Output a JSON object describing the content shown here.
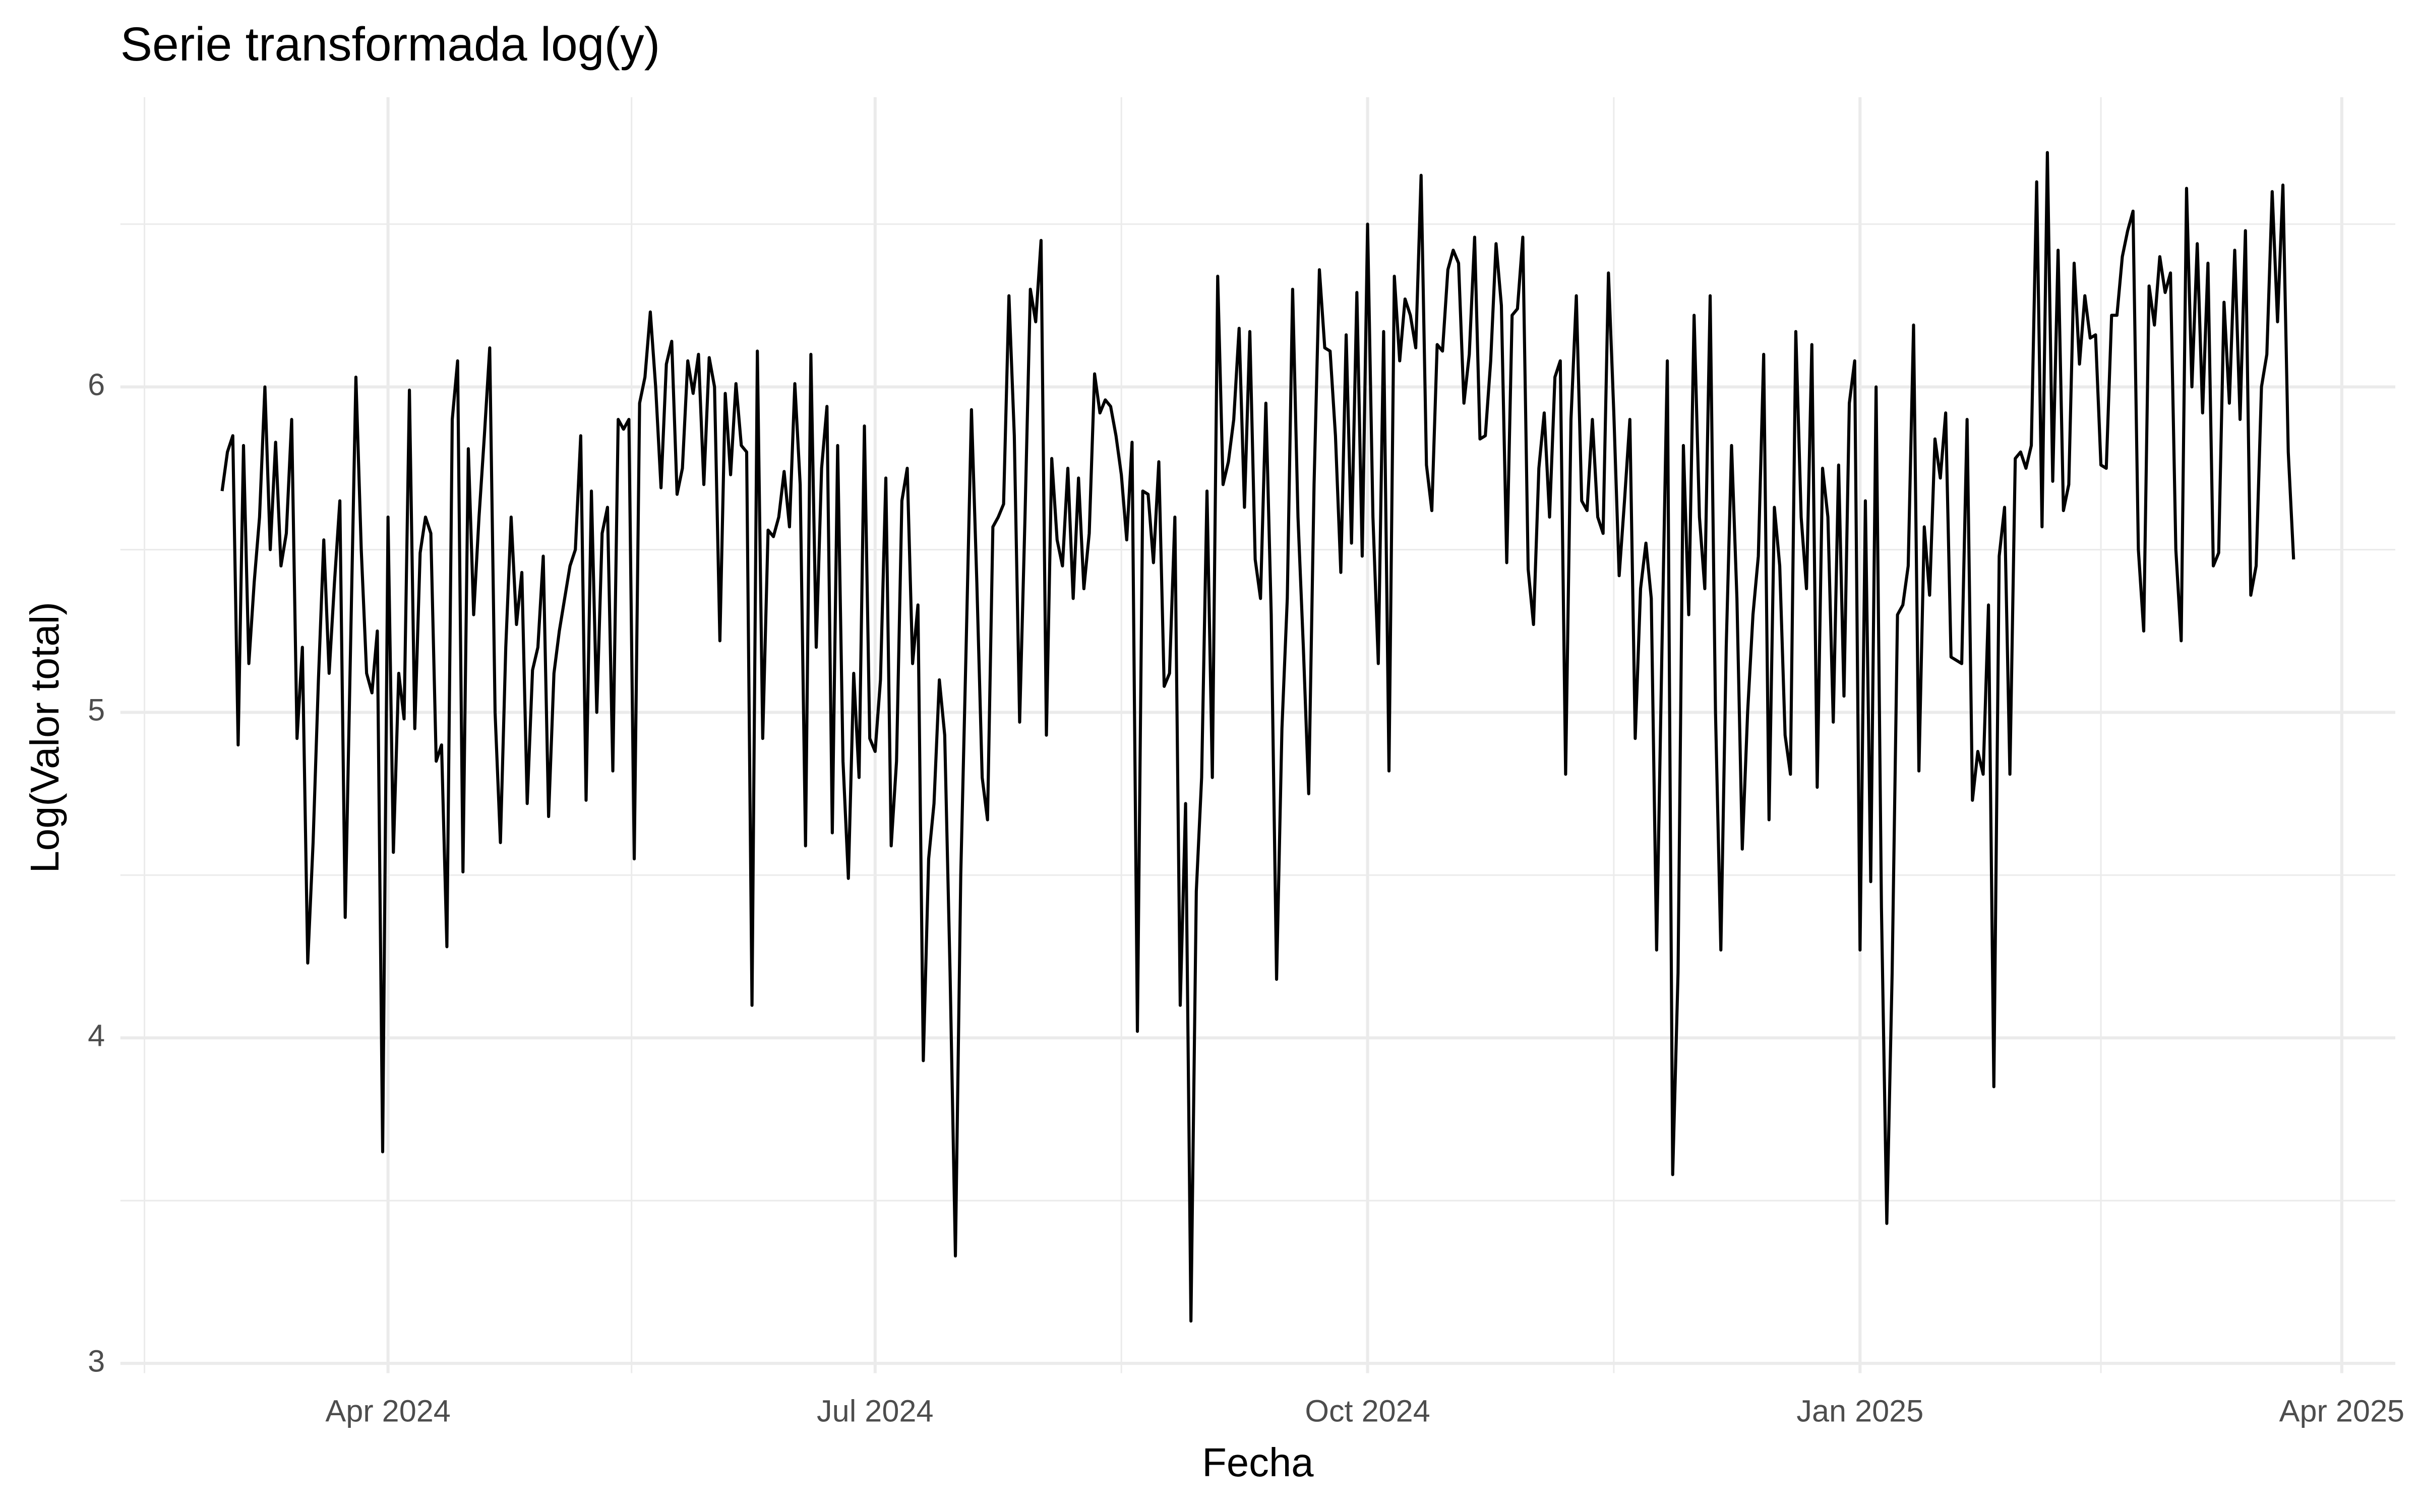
{
  "chart_data": {
    "type": "line",
    "title": "Serie transformada log(y)",
    "x_label": "Fecha",
    "y_label": "Log(Valor total)",
    "color": "#000000",
    "grid": true,
    "xlim": [
      "2024-02-11",
      "2025-04-11"
    ],
    "ylim": [
      2.97,
      6.89
    ],
    "xticks": [
      {
        "value": "2024-04-01",
        "label": "Apr 2024"
      },
      {
        "value": "2024-07-01",
        "label": "Jul 2024"
      },
      {
        "value": "2024-10-01",
        "label": "Oct 2024"
      },
      {
        "value": "2025-01-01",
        "label": "Jan 2025"
      },
      {
        "value": "2025-04-01",
        "label": "Apr 2025"
      }
    ],
    "yticks": [
      3,
      4,
      5,
      6
    ],
    "x": [
      "2024-03-01",
      "2024-03-02",
      "2024-03-03",
      "2024-03-04",
      "2024-03-05",
      "2024-03-06",
      "2024-03-07",
      "2024-03-08",
      "2024-03-09",
      "2024-03-10",
      "2024-03-11",
      "2024-03-12",
      "2024-03-13",
      "2024-03-14",
      "2024-03-15",
      "2024-03-16",
      "2024-03-17",
      "2024-03-18",
      "2024-03-19",
      "2024-03-20",
      "2024-03-21",
      "2024-03-22",
      "2024-03-23",
      "2024-03-24",
      "2024-03-25",
      "2024-03-26",
      "2024-03-27",
      "2024-03-28",
      "2024-03-29",
      "2024-03-30",
      "2024-03-31",
      "2024-04-01",
      "2024-04-02",
      "2024-04-03",
      "2024-04-04",
      "2024-04-05",
      "2024-04-06",
      "2024-04-07",
      "2024-04-08",
      "2024-04-09",
      "2024-04-10",
      "2024-04-11",
      "2024-04-12",
      "2024-04-13",
      "2024-04-14",
      "2024-04-15",
      "2024-04-16",
      "2024-04-17",
      "2024-04-18",
      "2024-04-19",
      "2024-04-20",
      "2024-04-21",
      "2024-04-22",
      "2024-04-23",
      "2024-04-24",
      "2024-04-25",
      "2024-04-26",
      "2024-04-27",
      "2024-04-28",
      "2024-04-29",
      "2024-04-30",
      "2024-05-01",
      "2024-05-02",
      "2024-05-03",
      "2024-05-04",
      "2024-05-05",
      "2024-05-06",
      "2024-05-07",
      "2024-05-08",
      "2024-05-09",
      "2024-05-10",
      "2024-05-11",
      "2024-05-12",
      "2024-05-13",
      "2024-05-14",
      "2024-05-15",
      "2024-05-16",
      "2024-05-17",
      "2024-05-18",
      "2024-05-19",
      "2024-05-20",
      "2024-05-21",
      "2024-05-22",
      "2024-05-23",
      "2024-05-24",
      "2024-05-25",
      "2024-05-26",
      "2024-05-27",
      "2024-05-28",
      "2024-05-29",
      "2024-05-30",
      "2024-05-31",
      "2024-06-01",
      "2024-06-02",
      "2024-06-03",
      "2024-06-04",
      "2024-06-05",
      "2024-06-06",
      "2024-06-07",
      "2024-06-08",
      "2024-06-09",
      "2024-06-10",
      "2024-06-11",
      "2024-06-12",
      "2024-06-13",
      "2024-06-14",
      "2024-06-15",
      "2024-06-16",
      "2024-06-17",
      "2024-06-18",
      "2024-06-19",
      "2024-06-20",
      "2024-06-21",
      "2024-06-22",
      "2024-06-23",
      "2024-06-24",
      "2024-06-25",
      "2024-06-26",
      "2024-06-27",
      "2024-06-28",
      "2024-06-29",
      "2024-06-30",
      "2024-07-01",
      "2024-07-02",
      "2024-07-03",
      "2024-07-04",
      "2024-07-05",
      "2024-07-06",
      "2024-07-07",
      "2024-07-08",
      "2024-07-09",
      "2024-07-10",
      "2024-07-11",
      "2024-07-12",
      "2024-07-13",
      "2024-07-14",
      "2024-07-15",
      "2024-07-16",
      "2024-07-17",
      "2024-07-18",
      "2024-07-19",
      "2024-07-20",
      "2024-07-21",
      "2024-07-22",
      "2024-07-23",
      "2024-07-24",
      "2024-07-25",
      "2024-07-26",
      "2024-07-27",
      "2024-07-28",
      "2024-07-29",
      "2024-07-30",
      "2024-07-31",
      "2024-08-01",
      "2024-08-02",
      "2024-08-03",
      "2024-08-04",
      "2024-08-05",
      "2024-08-06",
      "2024-08-07",
      "2024-08-08",
      "2024-08-09",
      "2024-08-10",
      "2024-08-11",
      "2024-08-12",
      "2024-08-13",
      "2024-08-14",
      "2024-08-15",
      "2024-08-16",
      "2024-08-17",
      "2024-08-18",
      "2024-08-19",
      "2024-08-20",
      "2024-08-21",
      "2024-08-22",
      "2024-08-23",
      "2024-08-24",
      "2024-08-25",
      "2024-08-26",
      "2024-08-27",
      "2024-08-28",
      "2024-08-29",
      "2024-08-30",
      "2024-08-31",
      "2024-09-01",
      "2024-09-02",
      "2024-09-03",
      "2024-09-04",
      "2024-09-05",
      "2024-09-06",
      "2024-09-07",
      "2024-09-08",
      "2024-09-09",
      "2024-09-10",
      "2024-09-11",
      "2024-09-12",
      "2024-09-13",
      "2024-09-14",
      "2024-09-15",
      "2024-09-16",
      "2024-09-17",
      "2024-09-18",
      "2024-09-19",
      "2024-09-20",
      "2024-09-21",
      "2024-09-22",
      "2024-09-23",
      "2024-09-24",
      "2024-09-25",
      "2024-09-26",
      "2024-09-27",
      "2024-09-28",
      "2024-09-29",
      "2024-09-30",
      "2024-10-01",
      "2024-10-02",
      "2024-10-03",
      "2024-10-04",
      "2024-10-05",
      "2024-10-06",
      "2024-10-07",
      "2024-10-08",
      "2024-10-09",
      "2024-10-10",
      "2024-10-11",
      "2024-10-12",
      "2024-10-13",
      "2024-10-14",
      "2024-10-15",
      "2024-10-16",
      "2024-10-17",
      "2024-10-18",
      "2024-10-19",
      "2024-10-20",
      "2024-10-21",
      "2024-10-22",
      "2024-10-23",
      "2024-10-24",
      "2024-10-25",
      "2024-10-26",
      "2024-10-27",
      "2024-10-28",
      "2024-10-29",
      "2024-10-30",
      "2024-10-31",
      "2024-11-01",
      "2024-11-02",
      "2024-11-03",
      "2024-11-04",
      "2024-11-05",
      "2024-11-06",
      "2024-11-07",
      "2024-11-08",
      "2024-11-09",
      "2024-11-10",
      "2024-11-11",
      "2024-11-12",
      "2024-11-13",
      "2024-11-14",
      "2024-11-15",
      "2024-11-16",
      "2024-11-17",
      "2024-11-18",
      "2024-11-19",
      "2024-11-20",
      "2024-11-21",
      "2024-11-22",
      "2024-11-23",
      "2024-11-24",
      "2024-11-25",
      "2024-11-26",
      "2024-11-27",
      "2024-11-28",
      "2024-11-29",
      "2024-11-30",
      "2024-12-01",
      "2024-12-02",
      "2024-12-03",
      "2024-12-04",
      "2024-12-05",
      "2024-12-06",
      "2024-12-07",
      "2024-12-08",
      "2024-12-09",
      "2024-12-10",
      "2024-12-11",
      "2024-12-12",
      "2024-12-13",
      "2024-12-14",
      "2024-12-15",
      "2024-12-16",
      "2024-12-17",
      "2024-12-18",
      "2024-12-19",
      "2024-12-20",
      "2024-12-21",
      "2024-12-22",
      "2024-12-23",
      "2024-12-24",
      "2024-12-25",
      "2024-12-26",
      "2024-12-27",
      "2024-12-28",
      "2024-12-29",
      "2024-12-30",
      "2024-12-31",
      "2025-01-01",
      "2025-01-02",
      "2025-01-03",
      "2025-01-04",
      "2025-01-05",
      "2025-01-06",
      "2025-01-07",
      "2025-01-08",
      "2025-01-09",
      "2025-01-10",
      "2025-01-11",
      "2025-01-12",
      "2025-01-13",
      "2025-01-14",
      "2025-01-15",
      "2025-01-16",
      "2025-01-17",
      "2025-01-18",
      "2025-01-19",
      "2025-01-20",
      "2025-01-21",
      "2025-01-22",
      "2025-01-23",
      "2025-01-24",
      "2025-01-25",
      "2025-01-26",
      "2025-01-27",
      "2025-01-28",
      "2025-01-29",
      "2025-01-30",
      "2025-01-31",
      "2025-02-01",
      "2025-02-02",
      "2025-02-03",
      "2025-02-04",
      "2025-02-05",
      "2025-02-06",
      "2025-02-07",
      "2025-02-08",
      "2025-02-09",
      "2025-02-10",
      "2025-02-11",
      "2025-02-12",
      "2025-02-13",
      "2025-02-14",
      "2025-02-15",
      "2025-02-16",
      "2025-02-17",
      "2025-02-18",
      "2025-02-19",
      "2025-02-20",
      "2025-02-21",
      "2025-02-22",
      "2025-02-23",
      "2025-02-24",
      "2025-02-25",
      "2025-02-26",
      "2025-02-27",
      "2025-02-28",
      "2025-03-01",
      "2025-03-02",
      "2025-03-03",
      "2025-03-04",
      "2025-03-05",
      "2025-03-06",
      "2025-03-07",
      "2025-03-08",
      "2025-03-09",
      "2025-03-10",
      "2025-03-11",
      "2025-03-12",
      "2025-03-13",
      "2025-03-14",
      "2025-03-15",
      "2025-03-16",
      "2025-03-17",
      "2025-03-18",
      "2025-03-19",
      "2025-03-20",
      "2025-03-21",
      "2025-03-22",
      "2025-03-23"
    ],
    "values": [
      5.68,
      5.8,
      5.85,
      4.9,
      5.82,
      5.15,
      5.4,
      5.6,
      6.0,
      5.5,
      5.83,
      5.45,
      5.55,
      5.9,
      4.92,
      5.2,
      4.23,
      4.6,
      5.1,
      5.53,
      5.12,
      5.4,
      5.65,
      4.37,
      5.2,
      6.03,
      5.5,
      5.12,
      5.06,
      5.25,
      3.65,
      5.6,
      4.57,
      5.12,
      4.98,
      5.99,
      4.95,
      5.49,
      5.6,
      5.55,
      4.85,
      4.9,
      4.28,
      5.9,
      6.08,
      4.51,
      5.81,
      5.3,
      5.6,
      5.85,
      6.12,
      5.0,
      4.6,
      5.2,
      5.6,
      5.27,
      5.43,
      4.72,
      5.13,
      5.2,
      5.48,
      4.68,
      5.12,
      5.25,
      5.35,
      5.45,
      5.5,
      5.85,
      4.73,
      5.68,
      5.0,
      5.55,
      5.63,
      4.82,
      5.9,
      5.87,
      5.9,
      4.55,
      5.95,
      6.03,
      6.23,
      6.0,
      5.69,
      6.07,
      6.14,
      5.67,
      5.75,
      6.08,
      5.98,
      6.1,
      5.7,
      6.09,
      6.0,
      5.22,
      5.98,
      5.73,
      6.01,
      5.82,
      5.8,
      4.1,
      6.11,
      4.92,
      5.56,
      5.54,
      5.6,
      5.74,
      5.57,
      6.01,
      5.7,
      4.59,
      6.1,
      5.2,
      5.75,
      5.94,
      4.63,
      5.82,
      4.85,
      4.49,
      5.12,
      4.8,
      5.88,
      4.92,
      4.88,
      5.1,
      5.72,
      4.59,
      4.85,
      5.65,
      5.75,
      5.15,
      5.33,
      3.93,
      4.55,
      4.72,
      5.1,
      4.93,
      4.2,
      3.33,
      4.5,
      5.2,
      5.93,
      5.4,
      4.8,
      4.67,
      5.57,
      5.6,
      5.64,
      6.28,
      5.85,
      4.97,
      5.6,
      6.3,
      6.2,
      6.45,
      4.93,
      5.78,
      5.53,
      5.45,
      5.75,
      5.35,
      5.72,
      5.38,
      5.55,
      6.04,
      5.92,
      5.96,
      5.94,
      5.85,
      5.73,
      5.53,
      5.83,
      4.02,
      5.68,
      5.67,
      5.46,
      5.77,
      5.08,
      5.12,
      5.6,
      4.1,
      4.72,
      3.13,
      4.45,
      4.8,
      5.68,
      4.8,
      6.34,
      5.7,
      5.77,
      5.9,
      6.18,
      5.63,
      6.17,
      5.47,
      5.35,
      5.95,
      5.3,
      4.18,
      4.95,
      5.35,
      6.3,
      5.6,
      5.2,
      4.75,
      5.7,
      6.36,
      6.12,
      6.11,
      5.85,
      5.43,
      6.16,
      5.52,
      6.29,
      5.48,
      6.5,
      5.6,
      5.15,
      6.17,
      4.82,
      6.34,
      6.08,
      6.27,
      6.22,
      6.12,
      6.65,
      5.76,
      5.62,
      6.13,
      6.11,
      6.36,
      6.42,
      6.38,
      5.95,
      6.1,
      6.46,
      5.84,
      5.85,
      6.08,
      6.44,
      6.25,
      5.46,
      6.22,
      6.24,
      6.46,
      5.44,
      5.27,
      5.75,
      5.92,
      5.6,
      6.03,
      6.08,
      4.81,
      5.9,
      6.28,
      5.65,
      5.62,
      5.9,
      5.6,
      5.55,
      6.35,
      5.92,
      5.42,
      5.65,
      5.9,
      4.92,
      5.38,
      5.52,
      5.35,
      4.27,
      5.2,
      6.08,
      3.58,
      4.2,
      5.82,
      5.3,
      6.22,
      5.6,
      5.38,
      6.28,
      5.0,
      4.27,
      5.2,
      5.82,
      5.35,
      4.58,
      5.0,
      5.3,
      5.48,
      6.1,
      4.67,
      5.63,
      5.45,
      4.93,
      4.81,
      6.17,
      5.6,
      5.38,
      6.13,
      4.77,
      5.75,
      5.6,
      4.97,
      5.76,
      5.05,
      5.95,
      6.08,
      4.27,
      5.65,
      4.48,
      6.0,
      4.4,
      3.43,
      4.2,
      5.3,
      5.33,
      5.45,
      6.19,
      4.82,
      5.57,
      5.36,
      5.84,
      5.72,
      5.92,
      5.17,
      5.16,
      5.15,
      5.9,
      4.73,
      4.88,
      4.81,
      5.33,
      3.85,
      5.48,
      5.63,
      4.81,
      5.78,
      5.8,
      5.75,
      5.82,
      6.63,
      5.57,
      6.72,
      5.71,
      6.42,
      5.62,
      5.7,
      6.38,
      6.07,
      6.28,
      6.15,
      6.16,
      5.76,
      5.75,
      6.22,
      6.22,
      6.4,
      6.48,
      6.54,
      5.5,
      5.25,
      6.31,
      6.19,
      6.4,
      6.29,
      6.35,
      5.5,
      5.22,
      6.61,
      6.0,
      6.44,
      5.92,
      6.38,
      5.45,
      5.49,
      6.26,
      5.95,
      6.42,
      5.9,
      6.48,
      5.36,
      5.45,
      6.0,
      6.1,
      6.6,
      6.2,
      6.62,
      5.8,
      5.47
    ]
  }
}
